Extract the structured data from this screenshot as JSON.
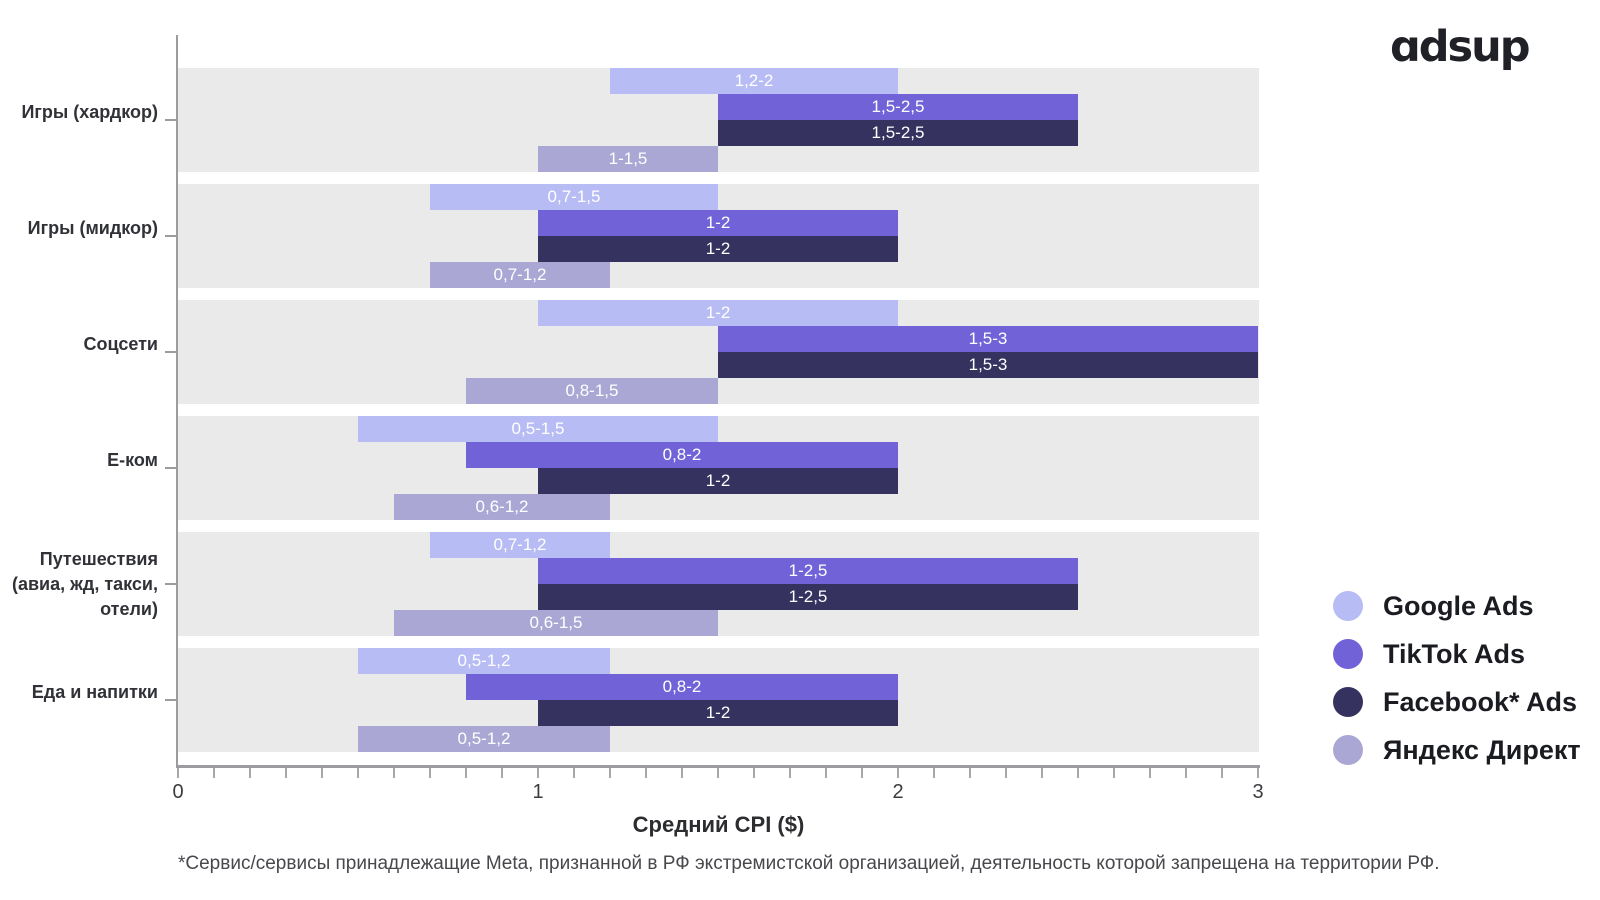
{
  "logo": {
    "text": "ɑdsup"
  },
  "footnote": "*Сервис/сервисы принадлежащие Meta, признанной в РФ экстремистской организацией, деятельность которой запрещена на территории РФ.",
  "colors": {
    "band_background": "#ebeaeb",
    "axis": "#9b9ba0",
    "bar_value_text": "#ffffff",
    "category_text": "#313237",
    "legend_text": "#1b1c21"
  },
  "chart_data": {
    "type": "bar",
    "subtype": "horizontal-range-bars",
    "title": "",
    "xlabel": "Средний CPI ($)",
    "ylabel": "",
    "xlim": [
      0,
      3
    ],
    "x_major_ticks": [
      "0",
      "1",
      "2",
      "3"
    ],
    "x_major_tick_values": [
      0,
      1,
      2,
      3
    ],
    "x_minor_step": 0.1,
    "grid": false,
    "legend_position": "right-bottom",
    "categories": [
      "Игры (хардкор)",
      "Игры (мидкор)",
      "Соцсети",
      "Е-ком",
      "Путешествия (авиа, жд, такси, отели)",
      "Еда и напитки"
    ],
    "categories_display": [
      [
        "Игры (хардкор)"
      ],
      [
        "Игры (мидкор)"
      ],
      [
        "Соцсети"
      ],
      [
        "Е-ком"
      ],
      [
        "Путешествия",
        "(авиа, жд, такси,",
        "отели)"
      ],
      [
        "Еда и напитки"
      ]
    ],
    "series": [
      {
        "name": "Google Ads",
        "slug": "google-ads",
        "color": "#b8bcf5",
        "ranges": [
          [
            1.2,
            2
          ],
          [
            0.7,
            1.5
          ],
          [
            1,
            2
          ],
          [
            0.5,
            1.5
          ],
          [
            0.7,
            1.2
          ],
          [
            0.5,
            1.2
          ]
        ],
        "labels": [
          "1,2-2",
          "0,7-1,5",
          "1-2",
          "0,5-1,5",
          "0,7-1,2",
          "0,5-1,2"
        ]
      },
      {
        "name": "TikTok Ads",
        "slug": "tiktok-ads",
        "color": "#7163d7",
        "ranges": [
          [
            1.5,
            2.5
          ],
          [
            1,
            2
          ],
          [
            1.5,
            3
          ],
          [
            0.8,
            2
          ],
          [
            1,
            2.5
          ],
          [
            0.8,
            2
          ]
        ],
        "labels": [
          "1,5-2,5",
          "1-2",
          "1,5-3",
          "0,8-2",
          "1-2,5",
          "0,8-2"
        ]
      },
      {
        "name": "Facebook* Ads",
        "slug": "facebook-ads",
        "color": "#363260",
        "ranges": [
          [
            1.5,
            2.5
          ],
          [
            1,
            2
          ],
          [
            1.5,
            3
          ],
          [
            1,
            2
          ],
          [
            1,
            2.5
          ],
          [
            1,
            2
          ]
        ],
        "labels": [
          "1,5-2,5",
          "1-2",
          "1,5-3",
          "1-2",
          "1-2,5",
          "1-2"
        ]
      },
      {
        "name": "Яндекс Директ",
        "slug": "yandex-direct",
        "color": "#aba7d5",
        "ranges": [
          [
            1,
            1.5
          ],
          [
            0.7,
            1.2
          ],
          [
            0.8,
            1.5
          ],
          [
            0.6,
            1.2
          ],
          [
            0.6,
            1.5
          ],
          [
            0.5,
            1.2
          ]
        ],
        "labels": [
          "1-1,5",
          "0,7-1,2",
          "0,8-1,5",
          "0,6-1,2",
          "0,6-1,5",
          "0,5-1,2"
        ]
      }
    ]
  }
}
